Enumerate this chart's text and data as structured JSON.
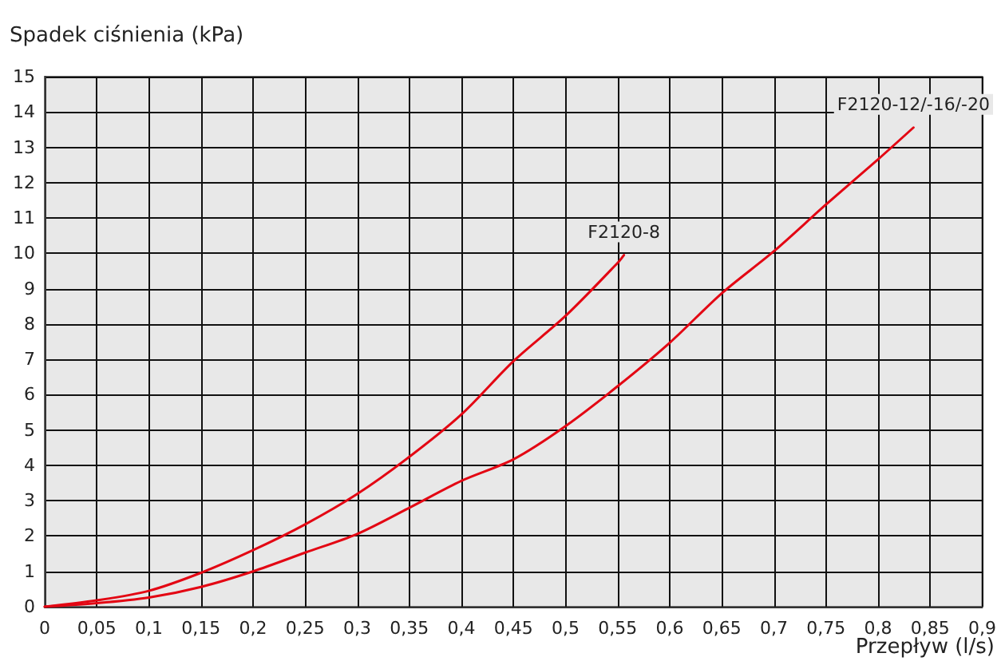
{
  "chart_data": {
    "type": "line",
    "xlabel": "Przepływ (l/s)",
    "ylabel": "Spadek ciśnienia (kPa)",
    "xlim": [
      0,
      0.9
    ],
    "xticks": [
      0,
      {
        "value": 0.05,
        "label": "0,05"
      },
      {
        "value": 0.1,
        "label": "0,1"
      },
      {
        "value": 0.15,
        "label": "0,15"
      },
      {
        "value": 0.2,
        "label": "0,2"
      },
      {
        "value": 0.25,
        "label": "0,25"
      },
      {
        "value": 0.3,
        "label": "0,3"
      },
      {
        "value": 0.35,
        "label": "0,35"
      },
      {
        "value": 0.4,
        "label": "0,4"
      },
      {
        "value": 0.45,
        "label": "0,45"
      },
      {
        "value": 0.5,
        "label": "0,5"
      },
      {
        "value": 0.55,
        "label": "0,55"
      },
      {
        "value": 0.6,
        "label": "0,6"
      },
      {
        "value": 0.65,
        "label": "0,65"
      },
      {
        "value": 0.7,
        "label": "0,7"
      },
      {
        "value": 0.75,
        "label": "0,75"
      },
      {
        "value": 0.8,
        "label": "0,8"
      },
      {
        "value": 0.85,
        "label": "0,85"
      },
      {
        "value": 0.9,
        "label": "0,9"
      }
    ],
    "ylim": [
      0,
      15
    ],
    "yticks": [
      0,
      1,
      2,
      3,
      4,
      5,
      6,
      7,
      8,
      9,
      10,
      11,
      12,
      13,
      14,
      15
    ],
    "grid": true,
    "legend": false,
    "marker": "none",
    "line_style": "solid",
    "series": [
      {
        "name": "F2120-8",
        "color": "#e30613",
        "x": [
          0,
          0.05,
          0.1,
          0.15,
          0.2,
          0.25,
          0.3,
          0.35,
          0.4,
          0.45,
          0.5,
          0.55,
          0.556
        ],
        "values": [
          0,
          0.18,
          0.45,
          0.96,
          1.6,
          2.33,
          3.19,
          4.24,
          5.44,
          6.95,
          8.23,
          9.73,
          9.95
        ]
      },
      {
        "name": "F2120-12/-16/-20",
        "color": "#e30613",
        "x": [
          0,
          0.05,
          0.1,
          0.15,
          0.2,
          0.25,
          0.3,
          0.35,
          0.4,
          0.45,
          0.5,
          0.55,
          0.6,
          0.65,
          0.7,
          0.75,
          0.8,
          0.834
        ],
        "values": [
          0,
          0.1,
          0.26,
          0.56,
          1.0,
          1.53,
          2.06,
          2.8,
          3.56,
          4.17,
          5.11,
          6.24,
          7.47,
          8.87,
          10.06,
          11.38,
          12.66,
          13.56
        ]
      }
    ]
  }
}
